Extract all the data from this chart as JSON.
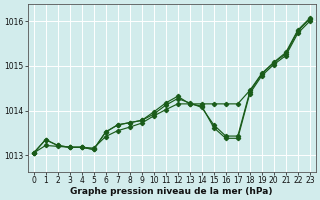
{
  "title": "Graphe pression niveau de la mer (hPa)",
  "background_color": "#d2ecec",
  "grid_color": "#b8d8d8",
  "line_color": "#1a5c1a",
  "xlim": [
    -0.5,
    23.5
  ],
  "ylim": [
    1012.62,
    1016.38
  ],
  "yticks": [
    1013,
    1014,
    1015,
    1016
  ],
  "xticks": [
    0,
    1,
    2,
    3,
    4,
    5,
    6,
    7,
    8,
    9,
    10,
    11,
    12,
    13,
    14,
    15,
    16,
    17,
    18,
    19,
    20,
    21,
    22,
    23
  ],
  "hours": [
    0,
    1,
    2,
    3,
    4,
    5,
    6,
    7,
    8,
    9,
    10,
    11,
    12,
    13,
    14,
    15,
    16,
    17,
    18,
    19,
    20,
    21,
    22,
    23
  ],
  "line1_y": [
    1013.05,
    1013.35,
    1013.22,
    1013.18,
    1013.18,
    1013.13,
    1013.52,
    1013.68,
    1013.73,
    1013.78,
    1013.92,
    1014.12,
    1014.27,
    1014.17,
    1014.07,
    1013.68,
    1013.43,
    1013.43,
    1014.42,
    1014.82,
    1015.07,
    1015.27,
    1015.78,
    1016.05
  ],
  "line2_y": [
    1013.05,
    1013.35,
    1013.22,
    1013.18,
    1013.18,
    1013.13,
    1013.52,
    1013.68,
    1013.73,
    1013.78,
    1013.97,
    1014.17,
    1014.32,
    1014.15,
    1014.1,
    1013.62,
    1013.38,
    1013.38,
    1014.38,
    1014.78,
    1015.03,
    1015.23,
    1015.73,
    1016.0
  ],
  "line3_y": [
    1013.05,
    1013.22,
    1013.2,
    1013.18,
    1013.18,
    1013.16,
    1013.42,
    1013.55,
    1013.63,
    1013.72,
    1013.88,
    1014.02,
    1014.15,
    1014.15,
    1014.15,
    1014.15,
    1014.15,
    1014.15,
    1014.45,
    1014.83,
    1015.08,
    1015.3,
    1015.8,
    1016.07
  ],
  "tick_fontsize": 5.5,
  "title_fontsize": 6.5,
  "figwidth": 3.2,
  "figheight": 2.0,
  "dpi": 100
}
